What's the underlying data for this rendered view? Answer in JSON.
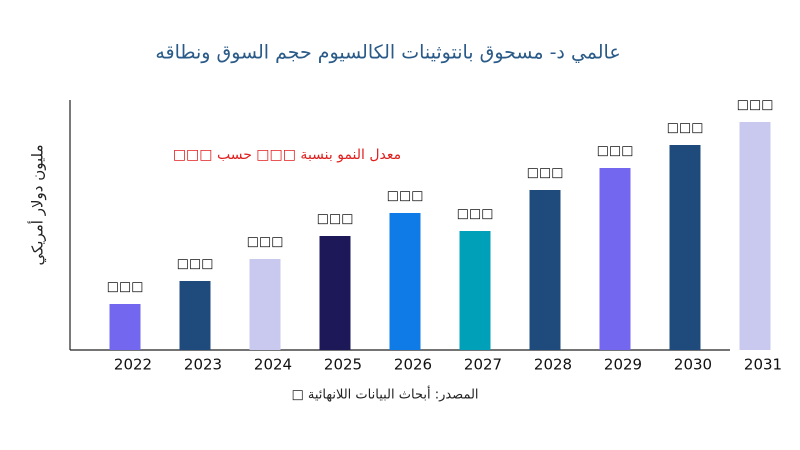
{
  "chart_data": {
    "type": "bar",
    "title": "عالمي د- مسحوق بانتوثينات الكالسيوم حجم السوق ونطاقه",
    "y_label": "مليون دولار أمريكي",
    "annotation": "معدل النمو بنسبة □□□ حسب □□□",
    "source": "المصدر: أبحاث البيانات اللانهائية □",
    "categories": [
      "2022",
      "2023",
      "2024",
      "2025",
      "2026",
      "2027",
      "2028",
      "2029",
      "2030",
      "2031"
    ],
    "values": [
      46,
      69,
      91,
      114,
      137,
      119,
      160,
      182,
      205,
      228
    ],
    "value_labels": [
      "□□□",
      "□□□",
      "□□□",
      "□□□",
      "□□□",
      "□□□",
      "□□□",
      "□□□",
      "□□□",
      "□□□"
    ],
    "colors": [
      "#7367f0",
      "#1f4a7c",
      "#c9c9f0",
      "#1d1858",
      "#0f7be6",
      "#00a0b9",
      "#1f4a7c",
      "#7367f0",
      "#1f4a7c",
      "#c9c9f0"
    ],
    "ylim": [
      0,
      250
    ]
  }
}
